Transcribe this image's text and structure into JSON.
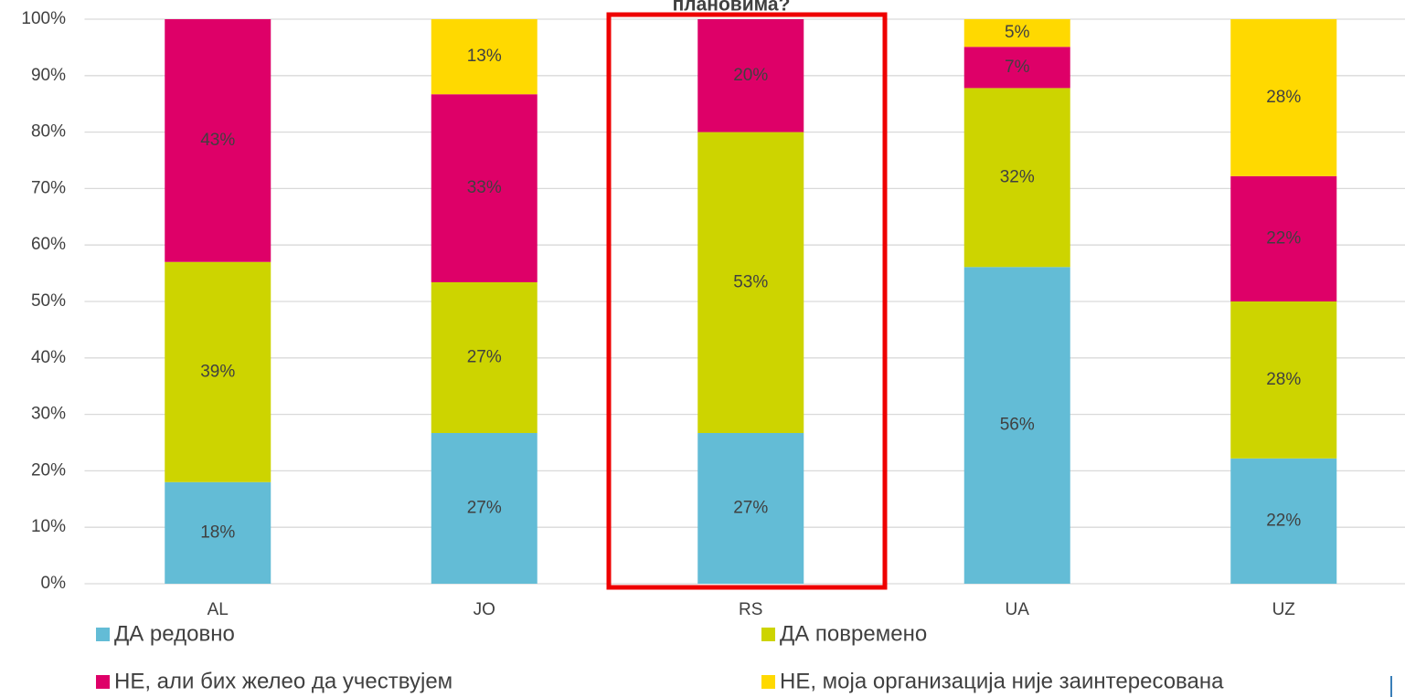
{
  "chart_data": {
    "type": "stacked_bar",
    "title": "плановима?",
    "categories": [
      "AL",
      "JO",
      "RS",
      "UA",
      "UZ"
    ],
    "series": [
      {
        "name": "ДА редовно",
        "color": "#63bcd6",
        "values": [
          18,
          26.7,
          26.7,
          56.1,
          22.2
        ],
        "value_labels": [
          "18%",
          "27%",
          "27%",
          "56%",
          "22%"
        ]
      },
      {
        "name": "ДА повремено",
        "color": "#cdd400",
        "values": [
          39,
          26.7,
          53.3,
          31.7,
          27.8
        ],
        "value_labels": [
          "39%",
          "27%",
          "53%",
          "32%",
          "28%"
        ]
      },
      {
        "name": "НЕ, али бих желео да учествујем",
        "color": "#de0068",
        "values": [
          43,
          33.3,
          20,
          7.3,
          22.2
        ],
        "value_labels": [
          "43%",
          "33%",
          "20%",
          "7%",
          "22%"
        ]
      },
      {
        "name": "НЕ, моја организација није заинтересована",
        "color": "#ffd900",
        "values": [
          null,
          13.3,
          null,
          4.9,
          27.8
        ],
        "value_labels": [
          null,
          "13%",
          null,
          "5%",
          "28%"
        ]
      }
    ],
    "ylim": [
      0,
      100
    ],
    "yticks": [
      {
        "value": 0,
        "label": "0%"
      },
      {
        "value": 10,
        "label": "10%"
      },
      {
        "value": 20,
        "label": "20%"
      },
      {
        "value": 30,
        "label": "30%"
      },
      {
        "value": 40,
        "label": "40%"
      },
      {
        "value": 50,
        "label": "50%"
      },
      {
        "value": 60,
        "label": "60%"
      },
      {
        "value": 70,
        "label": "70%"
      },
      {
        "value": 80,
        "label": "80%"
      },
      {
        "value": 90,
        "label": "90%"
      },
      {
        "value": 100,
        "label": "100%"
      }
    ],
    "grid": true,
    "legend": "bottom"
  }
}
